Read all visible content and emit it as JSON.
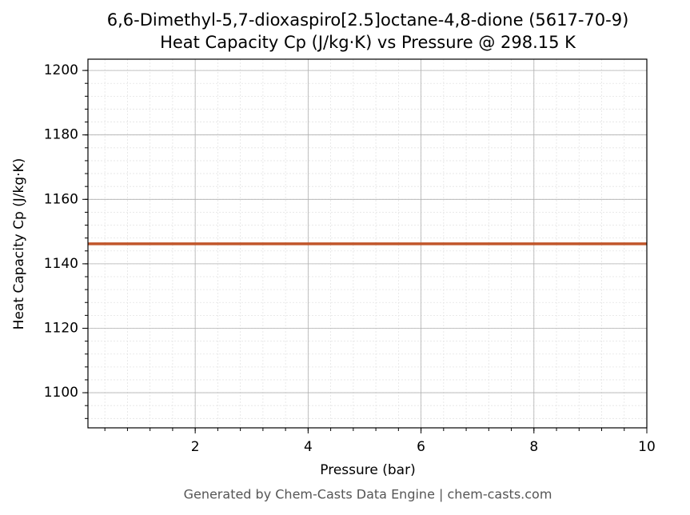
{
  "chart_data": {
    "type": "line",
    "title": "6,6-Dimethyl-5,7-dioxaspiro[2.5]octane-4,8-dione (5617-70-9)",
    "subtitle": "Heat Capacity Cp (J/kg·K) vs Pressure @ 298.15 K",
    "x_label": "Pressure (bar)",
    "y_label": "Heat Capacity Cp (J/kg·K)",
    "footer": "Generated by Chem-Casts Data Engine | chem-casts.com",
    "x": [
      0.1,
      10
    ],
    "series": [
      {
        "name": "Heat Capacity Cp",
        "color": "#c1562b",
        "values": [
          1146.2,
          1146.2
        ]
      }
    ],
    "xlim": [
      0.1,
      10
    ],
    "xticks": [
      2,
      4,
      6,
      8,
      10
    ],
    "ylim": [
      1089.1,
      1203.5
    ],
    "yticks": [
      1100,
      1120,
      1140,
      1160,
      1180,
      1200
    ],
    "grid": true,
    "minor_grid": true
  }
}
